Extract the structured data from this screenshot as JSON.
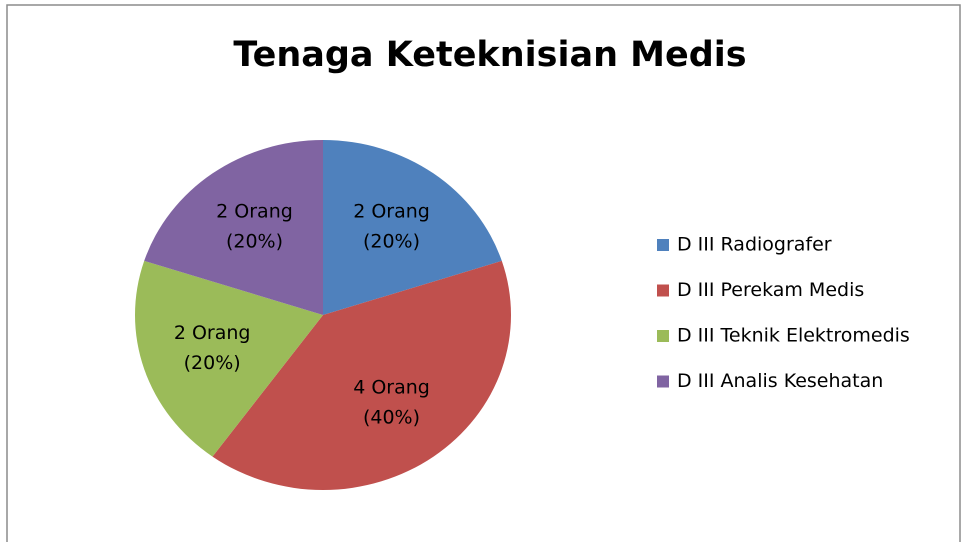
{
  "chart_data": {
    "type": "pie",
    "title": "Tenaga Keteknisian Medis",
    "categories": [
      "D III Radiografer",
      "D III Perekam Medis",
      "D III Teknik Elektromedis",
      "D III Analis Kesehatan"
    ],
    "values": [
      2,
      4,
      2,
      2
    ],
    "value_labels": [
      [
        "2 Orang",
        "(20%)"
      ],
      [
        "4 Orang",
        "(40%)"
      ],
      [
        "2 Orang",
        "(20%)"
      ],
      [
        "2 Orang",
        "(20%)"
      ]
    ],
    "colors": [
      "#4f81bd",
      "#c0504d",
      "#9bbb59",
      "#8064a2"
    ],
    "legend": "right"
  }
}
